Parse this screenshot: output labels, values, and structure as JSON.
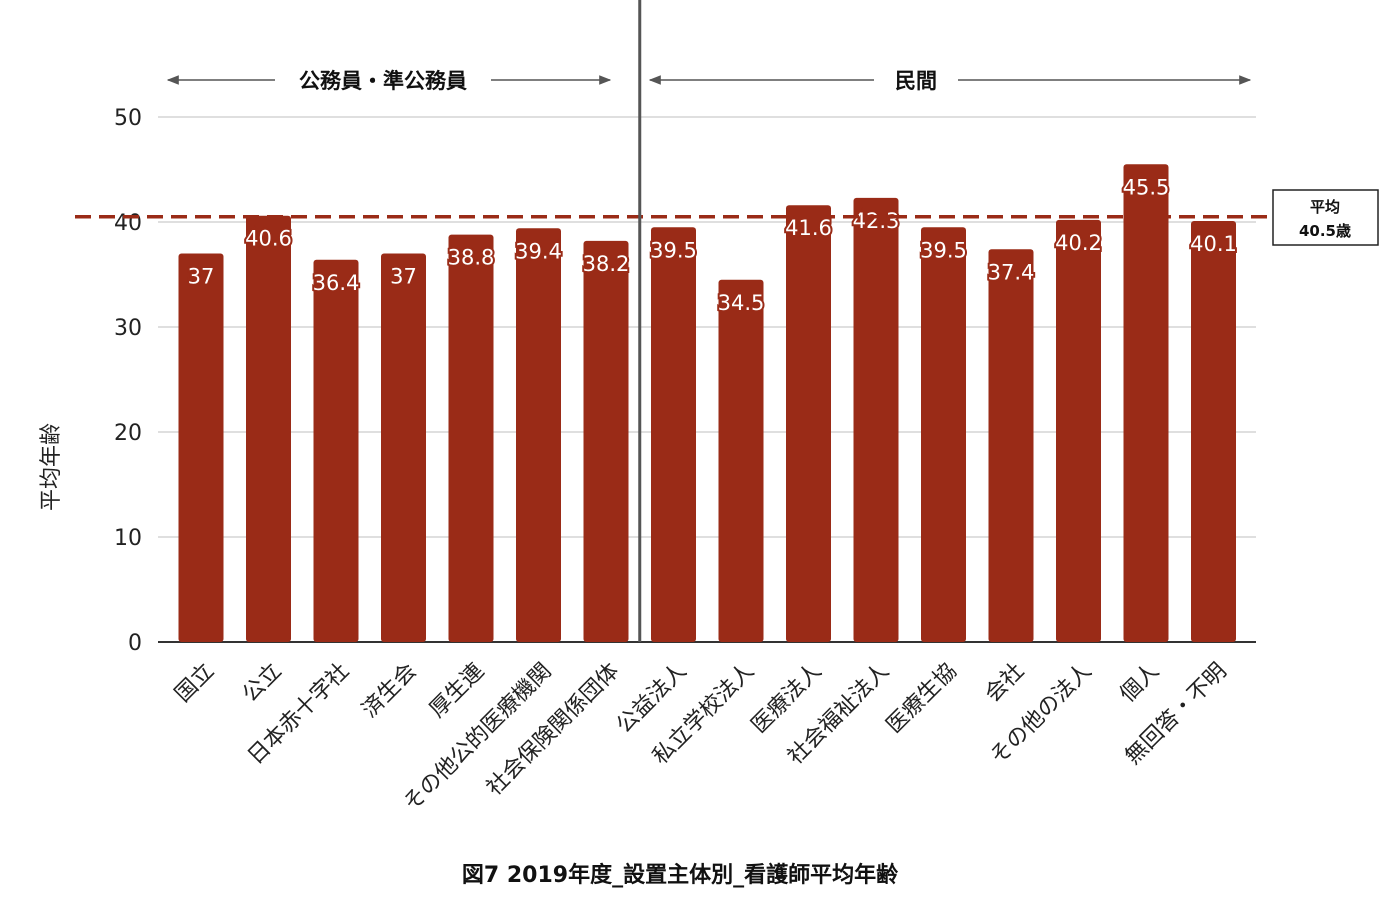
{
  "chart_data": {
    "type": "bar",
    "title": "図7  2019年度_設置主体別_看護師平均年齢",
    "xlabel": "",
    "ylabel": "平均年齢",
    "ylim": [
      0,
      50
    ],
    "yticks": [
      0,
      10,
      20,
      30,
      40,
      50
    ],
    "grid": true,
    "categories": [
      "国立",
      "公立",
      "日本赤十字社",
      "済生会",
      "厚生連",
      "その他公的医療機関",
      "社会保険関係団体",
      "公益法人",
      "私立学校法人",
      "医療法人",
      "社会福祉法人",
      "医療生協",
      "会社",
      "その他の法人",
      "個人",
      "無回答・不明"
    ],
    "values": [
      37,
      40.6,
      36.4,
      37,
      38.8,
      39.4,
      38.2,
      39.5,
      34.5,
      41.6,
      42.3,
      39.5,
      37.4,
      40.2,
      45.5,
      40.1
    ],
    "data_labels": [
      "37",
      "40.6",
      "36.4",
      "37",
      "38.8",
      "39.4",
      "38.2",
      "39.5",
      "34.5",
      "41.6",
      "42.3",
      "39.5",
      "37.4",
      "40.2",
      "45.5",
      "40.1"
    ],
    "average": {
      "value": 40.5,
      "label_line1": "平均",
      "label_line2": "40.5歳"
    },
    "groups": [
      {
        "label": "公務員・準公務員",
        "from_index": 0,
        "to_index": 6
      },
      {
        "label": "民間",
        "from_index": 7,
        "to_index": 15
      }
    ],
    "colors": {
      "bar": "#9a2b17",
      "average_line": "#9a2b17",
      "divider": "#555555",
      "grid": "#cccccc"
    }
  }
}
